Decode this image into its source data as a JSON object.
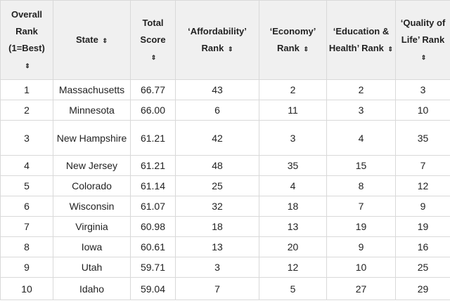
{
  "table": {
    "headers": [
      "Overall Rank (1=Best)",
      "State",
      "Total Score",
      "‘Affordability’ Rank",
      "‘Economy’ Rank",
      "‘Education & Health’ Rank",
      "‘Quality of Life’ Rank"
    ],
    "sort_icon": "sort-arrows-icon",
    "sort_glyph": "⇕",
    "rows": [
      [
        "1",
        "Massachusetts",
        "66.77",
        "43",
        "2",
        "2",
        "3"
      ],
      [
        "2",
        "Minnesota",
        "66.00",
        "6",
        "11",
        "3",
        "10"
      ],
      [
        "3",
        "New Hampshire",
        "61.21",
        "42",
        "3",
        "4",
        "35"
      ],
      [
        "4",
        "New Jersey",
        "61.21",
        "48",
        "35",
        "15",
        "7"
      ],
      [
        "5",
        "Colorado",
        "61.14",
        "25",
        "4",
        "8",
        "12"
      ],
      [
        "6",
        "Wisconsin",
        "61.07",
        "32",
        "18",
        "7",
        "9"
      ],
      [
        "7",
        "Virginia",
        "60.98",
        "18",
        "13",
        "19",
        "19"
      ],
      [
        "8",
        "Iowa",
        "60.61",
        "13",
        "20",
        "9",
        "16"
      ],
      [
        "9",
        "Utah",
        "59.71",
        "3",
        "12",
        "10",
        "25"
      ],
      [
        "10",
        "Idaho",
        "59.04",
        "7",
        "5",
        "27",
        "29"
      ]
    ]
  }
}
